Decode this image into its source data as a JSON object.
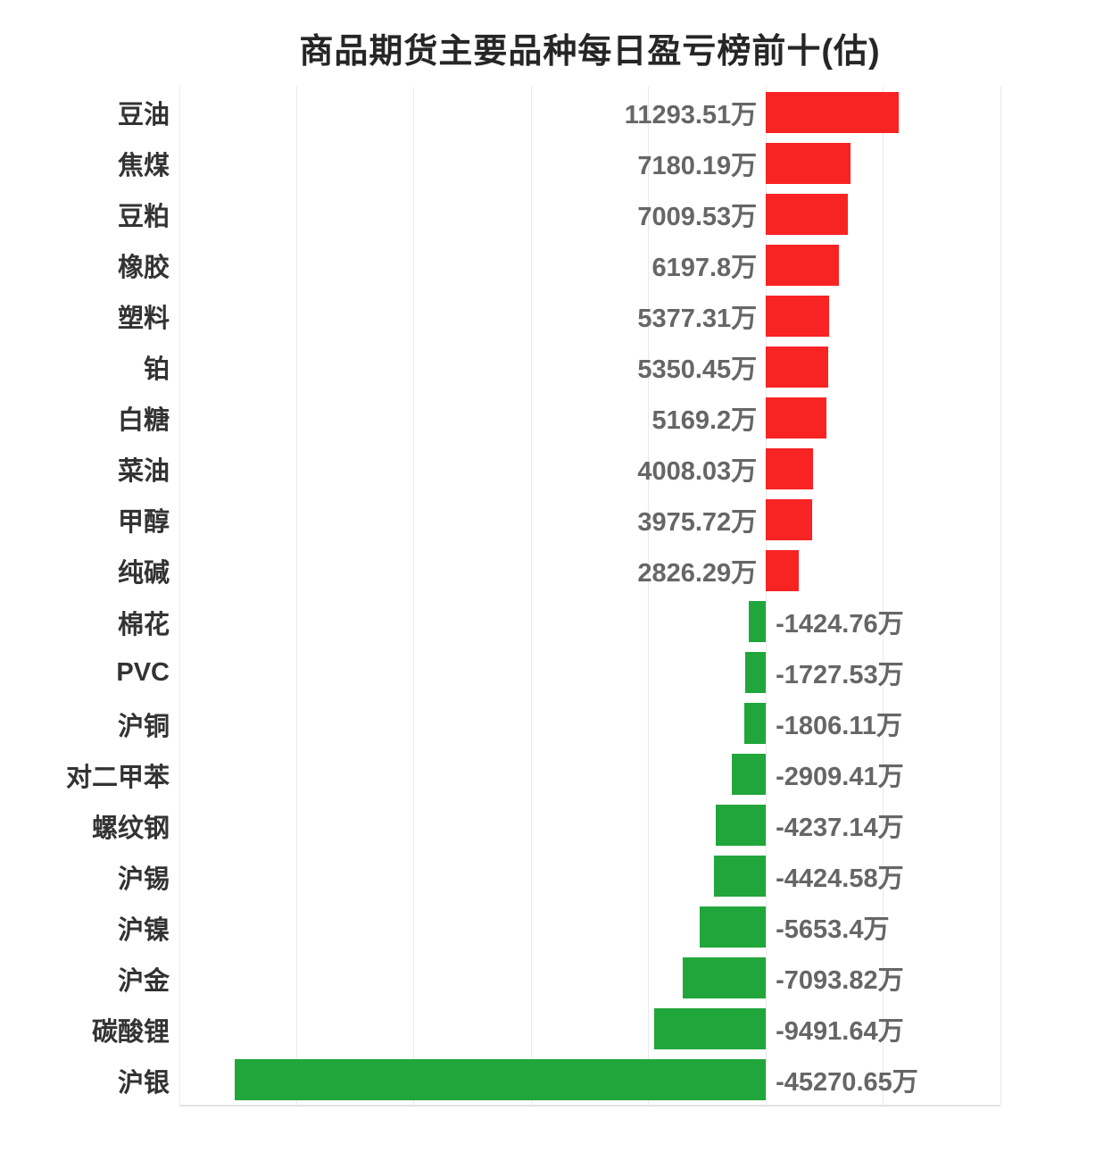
{
  "title": "商品期货主要品种每日盈亏榜前十(估)",
  "colors": {
    "positive_bar": "#F82323",
    "negative_bar": "#21A63B",
    "value_label": "#666666",
    "category_label": "#333333",
    "grid_line": "#e9e9e9",
    "axis_line": "#e3e3e3",
    "title": "#262626",
    "background": "#ffffff"
  },
  "chart_data": {
    "type": "bar",
    "orientation": "horizontal",
    "title": "商品期货主要品种每日盈亏榜前十(估)",
    "unit": "万",
    "grid": true,
    "legend": false,
    "xlim": [
      -50000,
      20000
    ],
    "grid_interval": 10000,
    "categories": [
      "豆油",
      "焦煤",
      "豆粕",
      "橡胶",
      "塑料",
      "铂",
      "白糖",
      "菜油",
      "甲醇",
      "纯碱",
      "棉花",
      "PVC",
      "沪铜",
      "对二甲苯",
      "螺纹钢",
      "沪锡",
      "沪镍",
      "沪金",
      "碳酸锂",
      "沪银"
    ],
    "values": [
      11293.51,
      7180.19,
      7009.53,
      6197.8,
      5377.31,
      5350.45,
      5169.2,
      4008.03,
      3975.72,
      2826.29,
      -1424.76,
      -1727.53,
      -1806.11,
      -2909.41,
      -4237.14,
      -4424.58,
      -5653.4,
      -7093.82,
      -9491.64,
      -45270.65
    ],
    "value_labels": [
      "11293.51万",
      "7180.19万",
      "7009.53万",
      "6197.8万",
      "5377.31万",
      "5350.45万",
      "5169.2万",
      "4008.03万",
      "3975.72万",
      "2826.29万",
      "-1424.76万",
      "-1727.53万",
      "-1806.11万",
      "-2909.41万",
      "-4237.14万",
      "-4424.58万",
      "-5653.4万",
      "-7093.82万",
      "-9491.64万",
      "-45270.65万"
    ]
  }
}
